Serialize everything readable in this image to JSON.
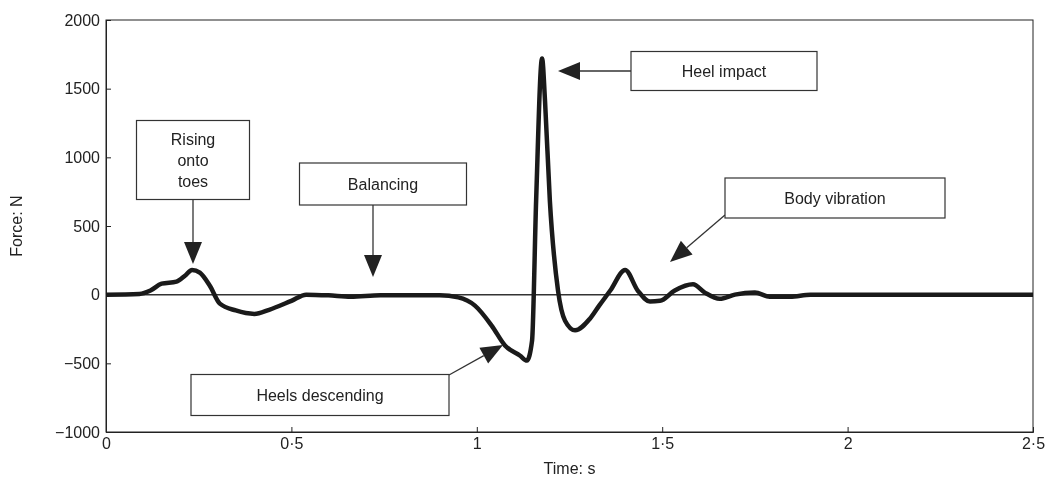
{
  "chart_data": {
    "type": "line",
    "xlabel": "Time: s",
    "ylabel": "Force: N",
    "x": [
      0,
      0.09,
      0.12,
      0.15,
      0.19,
      0.213,
      0.232,
      0.253,
      0.28,
      0.307,
      0.35,
      0.4,
      0.44,
      0.5,
      0.54,
      0.6,
      0.66,
      0.74,
      0.85,
      0.9,
      0.95,
      0.995,
      1.04,
      1.076,
      1.117,
      1.135,
      1.149,
      1.16,
      1.176,
      1.184,
      1.197,
      1.219,
      1.238,
      1.265,
      1.305,
      1.33,
      1.36,
      1.4,
      1.434,
      1.467,
      1.494,
      1.534,
      1.583,
      1.615,
      1.655,
      1.696,
      1.75,
      1.79,
      1.845,
      1.9,
      1.95,
      2.03,
      2.5
    ],
    "series": [
      {
        "color": "#1a1a1a",
        "values": [
          0,
          5,
          30,
          80,
          95,
          138,
          180,
          160,
          65,
          -65,
          -115,
          -140,
          -110,
          -45,
          0,
          -5,
          -15,
          -5,
          -5,
          -5,
          -20,
          -80,
          -225,
          -370,
          -445,
          -480,
          -335,
          685,
          1720,
          1410,
          685,
          30,
          -190,
          -260,
          -175,
          -80,
          30,
          180,
          30,
          -50,
          -45,
          30,
          75,
          15,
          -30,
          0,
          15,
          -15,
          -15,
          0,
          0,
          0,
          0
        ]
      }
    ],
    "xlim": [
      0,
      2.5
    ],
    "ylim": [
      -1000,
      2000
    ],
    "xticks": [
      0,
      {
        "value": 0.5,
        "label": "0·5"
      },
      1,
      {
        "value": 1.5,
        "label": "1·5"
      },
      2,
      {
        "value": 2.5,
        "label": "2·5"
      }
    ],
    "yticks": [
      {
        "value": -1000,
        "label": "−1000"
      },
      {
        "value": -500,
        "label": "−500"
      },
      0,
      500,
      1000,
      1500,
      2000
    ],
    "ref_lines": [
      {
        "axis": "y",
        "value": 0,
        "color": "#333333"
      }
    ],
    "grid": false,
    "marker": "none",
    "line_style": "solid",
    "annotations": [
      "Rising onto toes",
      "Balancing",
      "Heel impact",
      "Body vibration",
      "Heels descending"
    ]
  }
}
